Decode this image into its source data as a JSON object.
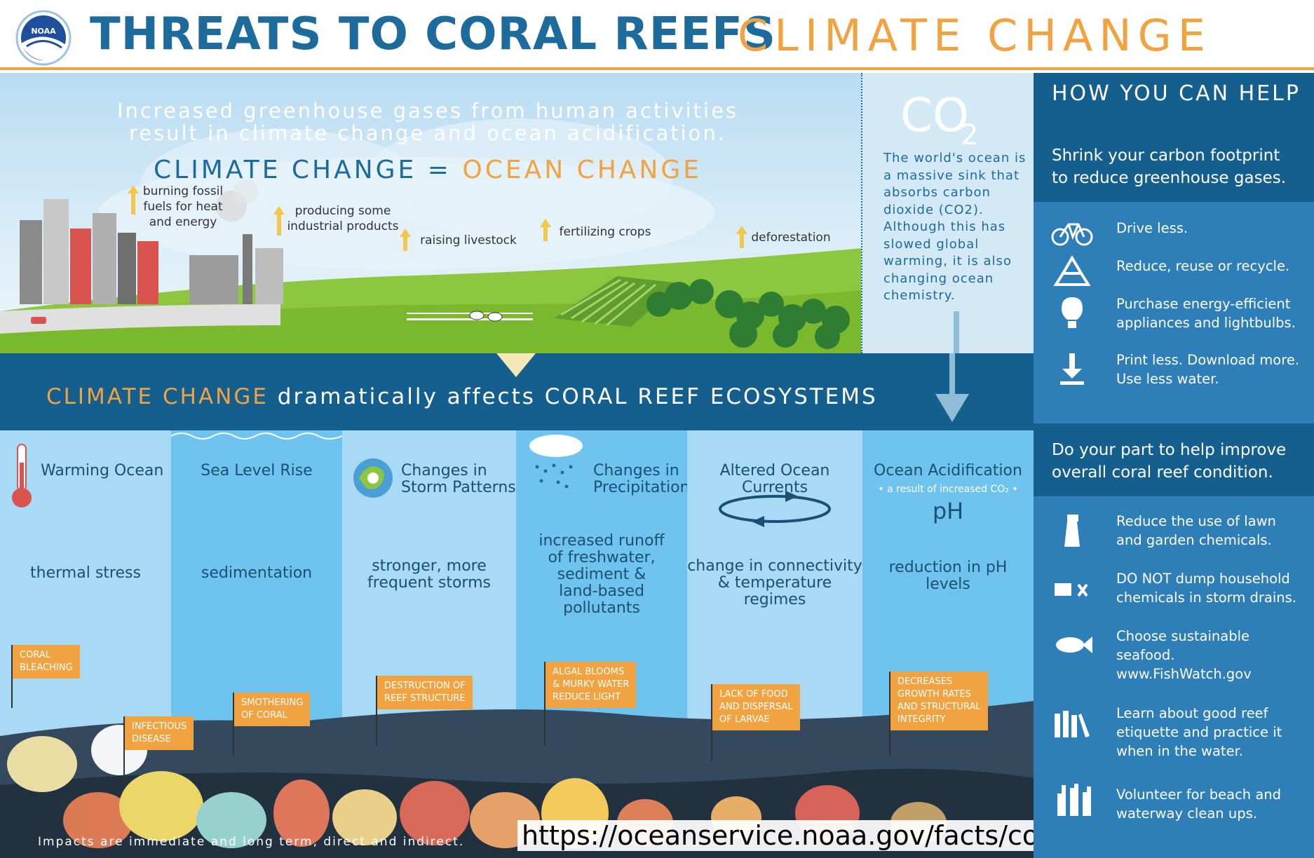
{
  "header": {
    "logo_text": "NOAA",
    "title": "THREATS TO CORAL REEFS",
    "title_accent": "CLIMATE CHANGE"
  },
  "intro": {
    "line1": "Increased greenhouse gases from human activities",
    "line2": "result in climate change and ocean acidification.",
    "equation_left": "CLIMATE CHANGE",
    "equation_eq": "=",
    "equation_right": "OCEAN CHANGE"
  },
  "sources": [
    {
      "label": "burning fossil\nfuels for heat\nand energy"
    },
    {
      "label": "producing some\nindustrial products"
    },
    {
      "label": "raising livestock"
    },
    {
      "label": "fertilizing crops"
    },
    {
      "label": "deforestation"
    }
  ],
  "co2": {
    "title": "CO",
    "subscript": "2",
    "text": "The world's ocean is a massive sink that absorbs carbon dioxide (CO2). Although this has slowed global warming, it is also changing ocean chemistry."
  },
  "band": {
    "highlight": "CLIMATE CHANGE",
    "rest": " dramatically affects ",
    "end": "CORAL REEF ECOSYSTEMS"
  },
  "columns": [
    {
      "title": "Warming Ocean",
      "impact": "thermal stress",
      "icon": "thermometer-icon"
    },
    {
      "title": "Sea Level Rise",
      "impact": "sedimentation",
      "icon": "waves-icon"
    },
    {
      "title": "Changes in\nStorm Patterns",
      "impact": "stronger, more\nfrequent storms",
      "icon": "storm-icon"
    },
    {
      "title": "Changes in\nPrecipitation",
      "impact": "increased runoff\nof freshwater,\nsediment &\nland-based\npollutants",
      "icon": "rain-cloud-icon"
    },
    {
      "title": "Altered Ocean Currents",
      "impact": "change in connectivity\n& temperature regimes",
      "icon": "current-arrows-icon"
    },
    {
      "title": "Ocean Acidification",
      "subtitle": "• a result of increased CO₂ •",
      "ph": "pH",
      "impact": "reduction in pH\nlevels",
      "icon": "ph-icon"
    }
  ],
  "flags": [
    {
      "text": "CORAL\nBLEACHING"
    },
    {
      "text": "INFECTIOUS\nDISEASE"
    },
    {
      "text": "SMOTHERING\nOF CORAL"
    },
    {
      "text": "DESTRUCTION OF\nREEF STRUCTURE"
    },
    {
      "text": "ALGAL BLOOMS\n& MURKY WATER\nREDUCE LIGHT"
    },
    {
      "text": "LACK OF FOOD\nAND DISPERSAL\nOF LARVAE"
    },
    {
      "text": "DECREASES\nGROWTH RATES\nAND STRUCTURAL\nINTEGRITY"
    }
  ],
  "footer": {
    "text": "Impacts are immediate and long term, direct and indirect.",
    "url": "https://oceanservice.noaa.gov/facts/coralreef-climate.html"
  },
  "help": {
    "title": "HOW YOU CAN HELP",
    "section1": "Shrink your carbon footprint to reduce greenhouse gases.",
    "items1": [
      {
        "label": "Drive less.",
        "icon": "bicycle-icon"
      },
      {
        "label": "Reduce, reuse or recycle.",
        "icon": "recycle-icon"
      },
      {
        "label": "Purchase energy-efficient appliances and lightbulbs.",
        "icon": "lightbulb-icon"
      },
      {
        "label": "Print less. Download more. Use less water.",
        "icon": "download-icon"
      }
    ],
    "section2": "Do your part to help improve overall coral reef condition.",
    "items2": [
      {
        "label": "Reduce the use of lawn and garden chemicals.",
        "icon": "spray-bottle-icon"
      },
      {
        "label": "DO NOT dump household chemicals in storm drains.",
        "icon": "no-dumping-icon"
      },
      {
        "label": "Choose sustainable seafood. www.FishWatch.gov",
        "icon": "fish-icon"
      },
      {
        "label": "Learn about good reef etiquette and practice it when in the water.",
        "icon": "books-icon"
      },
      {
        "label": "Volunteer for beach and waterway clean ups.",
        "icon": "raised-hands-icon"
      }
    ]
  }
}
